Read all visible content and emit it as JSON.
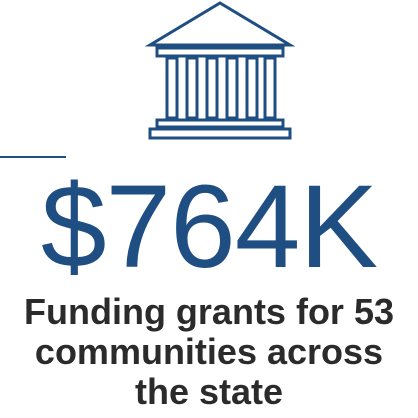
{
  "icon": {
    "name": "bank-building-icon",
    "color": "#1f4e82"
  },
  "stat": {
    "value": "$764K",
    "color": "#1f4e82"
  },
  "caption": {
    "lines": [
      "Funding grants for 53",
      "communities across",
      "the state"
    ]
  }
}
